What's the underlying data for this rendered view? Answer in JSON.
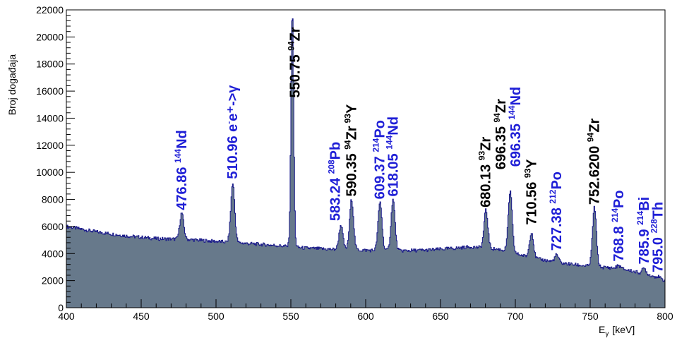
{
  "chart_data": {
    "type": "area",
    "xlabel_main": "E",
    "xlabel_sub": "γ",
    "xlabel_unit": "[keV]",
    "ylabel": "Broj događaja",
    "xlim": [
      400,
      800
    ],
    "ylim": [
      0,
      22000
    ],
    "x_ticks": [
      400,
      450,
      500,
      550,
      600,
      650,
      700,
      750,
      800
    ],
    "y_ticks": [
      0,
      2000,
      4000,
      6000,
      8000,
      10000,
      12000,
      14000,
      16000,
      18000,
      20000,
      22000
    ],
    "grid": false,
    "fill_color": "#67798b",
    "line_color": "#1a1a8a",
    "baseline": [
      {
        "x": 400,
        "y": 6000
      },
      {
        "x": 420,
        "y": 5600
      },
      {
        "x": 440,
        "y": 5300
      },
      {
        "x": 460,
        "y": 5100
      },
      {
        "x": 480,
        "y": 5050
      },
      {
        "x": 500,
        "y": 4900
      },
      {
        "x": 520,
        "y": 4750
      },
      {
        "x": 540,
        "y": 4600
      },
      {
        "x": 560,
        "y": 4400
      },
      {
        "x": 580,
        "y": 4300
      },
      {
        "x": 600,
        "y": 4250
      },
      {
        "x": 620,
        "y": 4200
      },
      {
        "x": 640,
        "y": 4250
      },
      {
        "x": 660,
        "y": 4400
      },
      {
        "x": 670,
        "y": 4500
      },
      {
        "x": 690,
        "y": 4300
      },
      {
        "x": 710,
        "y": 3700
      },
      {
        "x": 730,
        "y": 3300
      },
      {
        "x": 750,
        "y": 3050
      },
      {
        "x": 770,
        "y": 2900
      },
      {
        "x": 790,
        "y": 2400
      },
      {
        "x": 800,
        "y": 2000
      }
    ],
    "peaks": [
      {
        "x": 476.86,
        "height": 7000
      },
      {
        "x": 510.96,
        "height": 9200
      },
      {
        "x": 550.75,
        "height": 21900
      },
      {
        "x": 583.24,
        "height": 6100
      },
      {
        "x": 590.35,
        "height": 8000
      },
      {
        "x": 609.37,
        "height": 7800
      },
      {
        "x": 618.05,
        "height": 8000
      },
      {
        "x": 680.13,
        "height": 7200
      },
      {
        "x": 696.35,
        "height": 8600
      },
      {
        "x": 710.56,
        "height": 5600
      },
      {
        "x": 727.38,
        "height": 3900
      },
      {
        "x": 752.62,
        "height": 7400
      },
      {
        "x": 768.8,
        "height": 3100
      },
      {
        "x": 785.9,
        "height": 2900
      },
      {
        "x": 795.0,
        "height": 2300
      }
    ],
    "annotations": [
      {
        "value": "476.86",
        "isotope_mass": "144",
        "isotope_el": "Nd",
        "color": "blue",
        "anchor_x": 476.86,
        "anchor_y": 7000
      },
      {
        "value": "510.96",
        "isotope_el": "e",
        "extra": "e⁺->γ",
        "color": "blue",
        "anchor_x": 510.96,
        "anchor_y": 9300
      },
      {
        "value": "550.75",
        "isotope_mass": "94",
        "isotope_el": "Zr",
        "color": "black",
        "anchor_x": 552.6,
        "anchor_y": 15300
      },
      {
        "value": "583.24",
        "isotope_mass": "208",
        "isotope_el": "Pb",
        "color": "blue",
        "anchor_x": 579.5,
        "anchor_y": 6200
      },
      {
        "value": "590.35",
        "isotope_mass": "94",
        "isotope_el": "Zr",
        "extra_mass": "93",
        "extra_el": "Y",
        "color": "black",
        "anchor_x": 590.3,
        "anchor_y": 8000
      },
      {
        "value": "609.37",
        "isotope_mass": "214",
        "isotope_el": "Po",
        "color": "blue",
        "anchor_x": 609.3,
        "anchor_y": 7800
      },
      {
        "value": "618.05",
        "isotope_mass": "144",
        "isotope_el": "Nd",
        "color": "blue",
        "anchor_x": 618.1,
        "anchor_y": 8000
      },
      {
        "value": "680.13",
        "isotope_mass": "93",
        "isotope_el": "Zr",
        "color": "black",
        "anchor_x": 680.0,
        "anchor_y": 7200
      },
      {
        "value": "696.35",
        "isotope_mass": "94",
        "isotope_el": "Zr",
        "color": "black",
        "anchor_x": 690.0,
        "anchor_y": 10000
      },
      {
        "value": "696.35",
        "isotope_mass": "144",
        "isotope_el": "Nd",
        "color": "blue",
        "anchor_x": 700.0,
        "anchor_y": 10200
      },
      {
        "value": "710.56",
        "isotope_mass": "93",
        "isotope_el": "Y",
        "color": "black",
        "anchor_x": 710.5,
        "anchor_y": 5900
      },
      {
        "value": "727.38",
        "isotope_mass": "212",
        "isotope_el": "Po",
        "color": "blue",
        "anchor_x": 727.4,
        "anchor_y": 4000
      },
      {
        "value": "752.6200",
        "isotope_mass": "94",
        "isotope_el": "Zr",
        "color": "black",
        "anchor_x": 752.6,
        "anchor_y": 7400
      },
      {
        "value": "768.8",
        "isotope_mass": "214",
        "isotope_el": "Po",
        "color": "blue",
        "anchor_x": 768.8,
        "anchor_y": 3200
      },
      {
        "value": "785.9",
        "isotope_mass": "214",
        "isotope_el": "Bi",
        "color": "blue",
        "anchor_x": 785.9,
        "anchor_y": 3000
      },
      {
        "value": "795.0",
        "isotope_mass": "228",
        "isotope_el": "Th",
        "color": "blue",
        "anchor_x": 795.0,
        "anchor_y": 2400
      }
    ]
  },
  "colors": {
    "blue_label": "#1f1fd6",
    "black_label": "#000000"
  }
}
